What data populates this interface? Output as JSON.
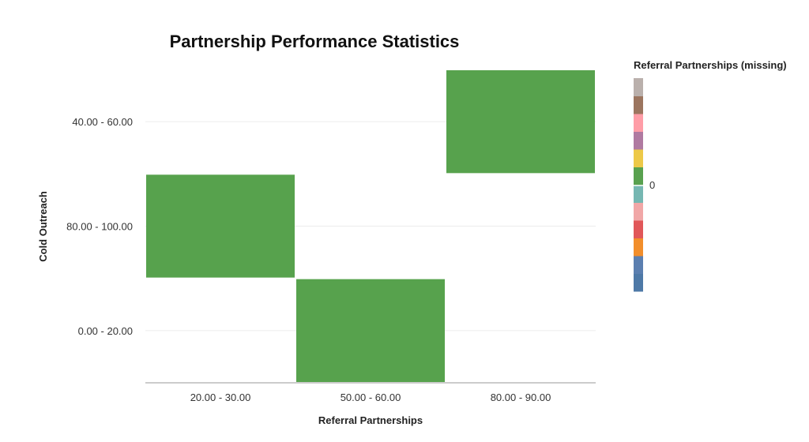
{
  "chart_data": {
    "type": "heatmap",
    "title": "Partnership Performance Statistics",
    "xlabel": "Referral Partnerships",
    "ylabel": "Cold Outreach",
    "x_categories": [
      "20.00 - 30.00",
      "50.00 - 60.00",
      "80.00 - 90.00"
    ],
    "y_categories": [
      "40.00 - 60.00",
      "80.00 - 100.00",
      "0.00 - 20.00"
    ],
    "cells": [
      {
        "x": "80.00 - 90.00",
        "y": "40.00 - 60.00",
        "value": 0
      },
      {
        "x": "20.00 - 30.00",
        "y": "80.00 - 100.00",
        "value": 0
      },
      {
        "x": "50.00 - 60.00",
        "y": "0.00 - 20.00",
        "value": 0
      }
    ],
    "cell_color": "#57a24d",
    "grid": true,
    "legend": {
      "title": "Referral Partnerships (missing)",
      "tick_label": "0",
      "placement": "right",
      "colors": [
        "#4e79a7",
        "#5b7fb0",
        "#f28e2b",
        "#e15759",
        "#f1a7a7",
        "#76b7b2",
        "#59a14f",
        "#edc948",
        "#b07aa1",
        "#ff9da7",
        "#9c755f",
        "#bab0ac"
      ]
    }
  }
}
